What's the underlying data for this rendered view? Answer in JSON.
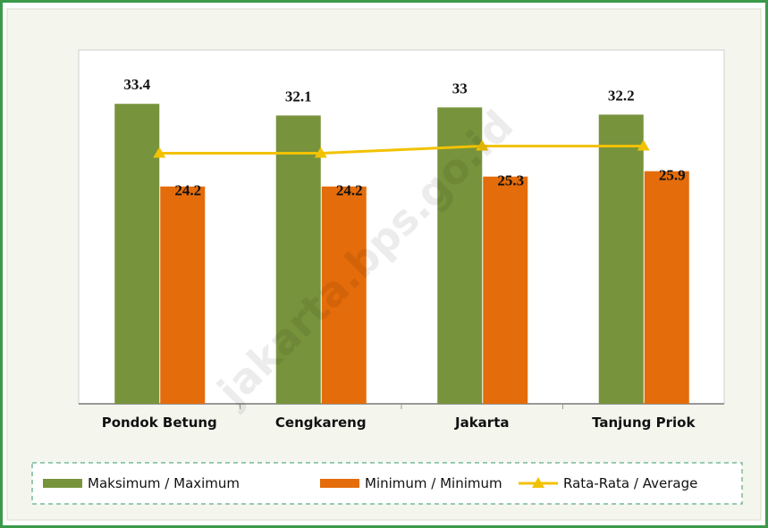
{
  "chart_data": {
    "type": "bar",
    "categories": [
      "Pondok Betung",
      "Cengkareng",
      "Jakarta",
      "Tanjung Priok"
    ],
    "series": [
      {
        "name": "Maksimum / Maximum",
        "color": "#77933c",
        "values": [
          33.4,
          32.1,
          33,
          32.2
        ]
      },
      {
        "name": "Minimum / Minimum",
        "color": "#e46c0a",
        "values": [
          24.2,
          24.2,
          25.3,
          25.9
        ]
      },
      {
        "name": "Rata-Rata / Average",
        "type": "line",
        "color": "#f2c200",
        "values": [
          27.9,
          27.9,
          28.7,
          28.7
        ]
      }
    ],
    "ylim": [
      0,
      38
    ],
    "legend": "bottom",
    "watermark": "jakarta.bps.go.id"
  }
}
